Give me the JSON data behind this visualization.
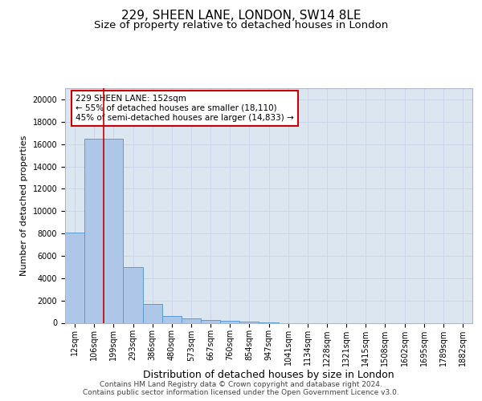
{
  "title1": "229, SHEEN LANE, LONDON, SW14 8LE",
  "title2": "Size of property relative to detached houses in London",
  "xlabel": "Distribution of detached houses by size in London",
  "ylabel": "Number of detached properties",
  "categories": [
    "12sqm",
    "106sqm",
    "199sqm",
    "293sqm",
    "386sqm",
    "480sqm",
    "573sqm",
    "667sqm",
    "760sqm",
    "854sqm",
    "947sqm",
    "1041sqm",
    "1134sqm",
    "1228sqm",
    "1321sqm",
    "1415sqm",
    "1508sqm",
    "1602sqm",
    "1695sqm",
    "1789sqm",
    "1882sqm"
  ],
  "values": [
    8050,
    16500,
    16500,
    5000,
    1700,
    580,
    380,
    230,
    180,
    100,
    40,
    0,
    0,
    0,
    0,
    0,
    0,
    0,
    0,
    0,
    0
  ],
  "bar_color": "#aec6e8",
  "bar_edge_color": "#5b9bd5",
  "vline_x": 1.5,
  "vline_color": "#cc0000",
  "annotation_line1": "229 SHEEN LANE: 152sqm",
  "annotation_line2": "← 55% of detached houses are smaller (18,110)",
  "annotation_line3": "45% of semi-detached houses are larger (14,833) →",
  "annotation_box_color": "#cc0000",
  "ylim": [
    0,
    21000
  ],
  "yticks": [
    0,
    2000,
    4000,
    6000,
    8000,
    10000,
    12000,
    14000,
    16000,
    18000,
    20000
  ],
  "grid_color": "#c8d4e8",
  "plot_bg_color": "#dce6f1",
  "footer_line1": "Contains HM Land Registry data © Crown copyright and database right 2024.",
  "footer_line2": "Contains public sector information licensed under the Open Government Licence v3.0.",
  "title1_fontsize": 11,
  "title2_fontsize": 9.5,
  "xlabel_fontsize": 9,
  "ylabel_fontsize": 8,
  "tick_fontsize": 7,
  "annotation_fontsize": 7.5,
  "footer_fontsize": 6.5
}
